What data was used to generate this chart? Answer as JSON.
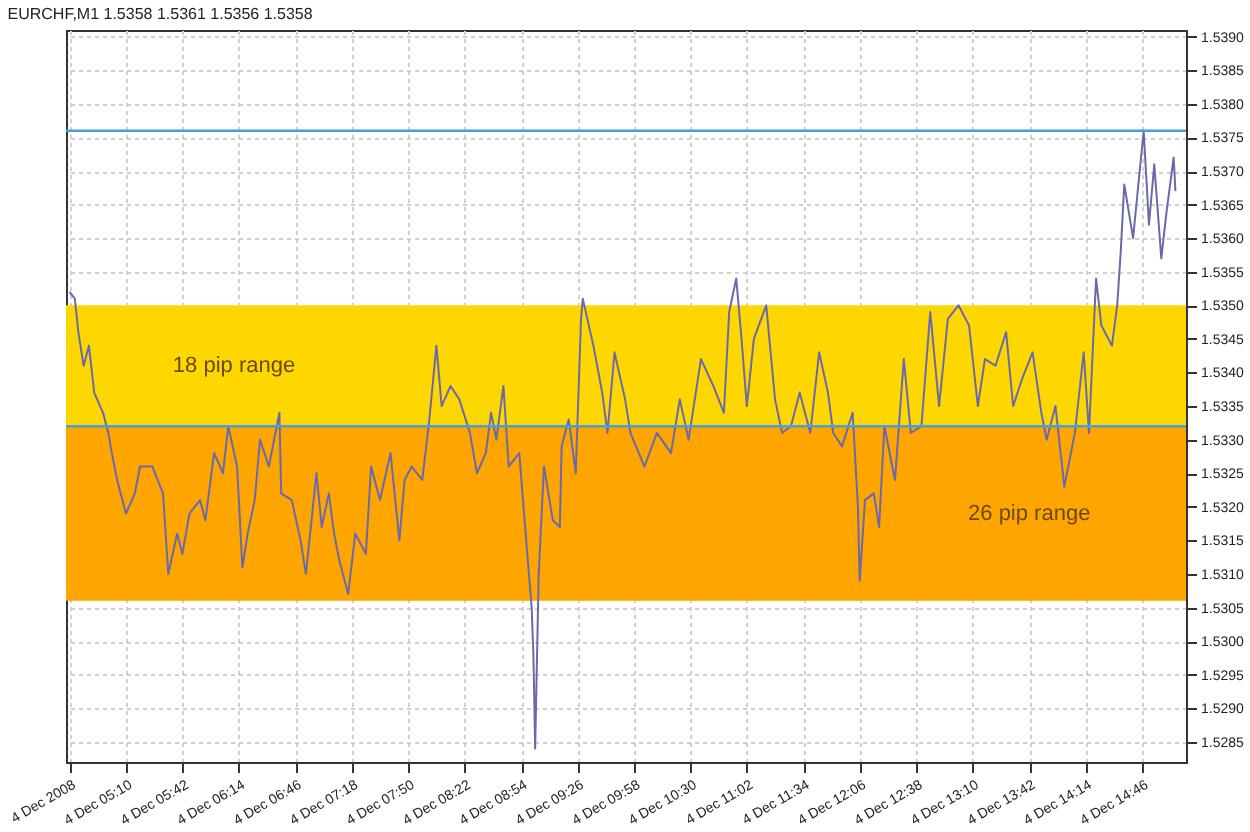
{
  "chart_data": {
    "type": "line",
    "title": "EURCHF,M1 1.5358 1.5361 1.5356 1.5358",
    "x": [
      "2008-12-04T04:38",
      "2008-12-04T04:41",
      "2008-12-04T04:43",
      "2008-12-04T04:46",
      "2008-12-04T04:49",
      "2008-12-04T04:52",
      "2008-12-04T04:57",
      "2008-12-04T05:00",
      "2008-12-04T05:02",
      "2008-12-04T05:05",
      "2008-12-04T05:10",
      "2008-12-04T05:15",
      "2008-12-04T05:18",
      "2008-12-04T05:25",
      "2008-12-04T05:31",
      "2008-12-04T05:34",
      "2008-12-04T05:39",
      "2008-12-04T05:42",
      "2008-12-04T05:46",
      "2008-12-04T05:52",
      "2008-12-04T05:55",
      "2008-12-04T06:00",
      "2008-12-04T06:05",
      "2008-12-04T06:08",
      "2008-12-04T06:13",
      "2008-12-04T06:16",
      "2008-12-04T06:19",
      "2008-12-04T06:23",
      "2008-12-04T06:26",
      "2008-12-04T06:31",
      "2008-12-04T06:37",
      "2008-12-04T06:38",
      "2008-12-04T06:44",
      "2008-12-04T06:49",
      "2008-12-04T06:52",
      "2008-12-04T06:58",
      "2008-12-04T07:01",
      "2008-12-04T07:05",
      "2008-12-04T07:08",
      "2008-12-04T07:11",
      "2008-12-04T07:16",
      "2008-12-04T07:20",
      "2008-12-04T07:26",
      "2008-12-04T07:29",
      "2008-12-04T07:34",
      "2008-12-04T07:40",
      "2008-12-04T07:45",
      "2008-12-04T07:48",
      "2008-12-04T07:52",
      "2008-12-04T07:58",
      "2008-12-04T08:02",
      "2008-12-04T08:06",
      "2008-12-04T08:09",
      "2008-12-04T08:14",
      "2008-12-04T08:19",
      "2008-12-04T08:25",
      "2008-12-04T08:29",
      "2008-12-04T08:34",
      "2008-12-04T08:37",
      "2008-12-04T08:40",
      "2008-12-04T08:44",
      "2008-12-04T08:47",
      "2008-12-04T08:53",
      "2008-12-04T08:56",
      "2008-12-04T09:00",
      "2008-12-04T09:01",
      "2008-12-04T09:02",
      "2008-12-04T09:04",
      "2008-12-04T09:07",
      "2008-12-04T09:12",
      "2008-12-04T09:16",
      "2008-12-04T09:17",
      "2008-12-04T09:21",
      "2008-12-04T09:25",
      "2008-12-04T09:28",
      "2008-12-04T09:29",
      "2008-12-04T09:35",
      "2008-12-04T09:40",
      "2008-12-04T09:43",
      "2008-12-04T09:47",
      "2008-12-04T09:53",
      "2008-12-04T09:56",
      "2008-12-04T10:04",
      "2008-12-04T10:11",
      "2008-12-04T10:19",
      "2008-12-04T10:24",
      "2008-12-04T10:29",
      "2008-12-04T10:36",
      "2008-12-04T10:43",
      "2008-12-04T10:49",
      "2008-12-04T10:52",
      "2008-12-04T10:56",
      "2008-12-04T10:59",
      "2008-12-04T11:02",
      "2008-12-04T11:06",
      "2008-12-04T11:13",
      "2008-12-04T11:18",
      "2008-12-04T11:22",
      "2008-12-04T11:27",
      "2008-12-04T11:32",
      "2008-12-04T11:38",
      "2008-12-04T11:43",
      "2008-12-04T11:48",
      "2008-12-04T11:51",
      "2008-12-04T11:56",
      "2008-12-04T12:02",
      "2008-12-04T12:05",
      "2008-12-04T12:06",
      "2008-12-04T12:09",
      "2008-12-04T12:14",
      "2008-12-04T12:17",
      "2008-12-04T12:20",
      "2008-12-04T12:26",
      "2008-12-04T12:31",
      "2008-12-04T12:35",
      "2008-12-04T12:41",
      "2008-12-04T12:46",
      "2008-12-04T12:51",
      "2008-12-04T12:56",
      "2008-12-04T13:02",
      "2008-12-04T13:08",
      "2008-12-04T13:13",
      "2008-12-04T13:17",
      "2008-12-04T13:23",
      "2008-12-04T13:29",
      "2008-12-04T13:33",
      "2008-12-04T13:38",
      "2008-12-04T13:44",
      "2008-12-04T13:49",
      "2008-12-04T13:52",
      "2008-12-04T13:57",
      "2008-12-04T14:02",
      "2008-12-04T14:08",
      "2008-12-04T14:13",
      "2008-12-04T14:16",
      "2008-12-04T14:20",
      "2008-12-04T14:23",
      "2008-12-04T14:29",
      "2008-12-04T14:32",
      "2008-12-04T14:34",
      "2008-12-04T14:36",
      "2008-12-04T14:41",
      "2008-12-04T14:47",
      "2008-12-04T14:50",
      "2008-12-04T14:53",
      "2008-12-04T14:57",
      "2008-12-04T15:00",
      "2008-12-04T15:04",
      "2008-12-04T15:05"
    ],
    "series": [
      {
        "color": "#6a6aaa",
        "values": [
          1.5352,
          1.5351,
          1.5346,
          1.5341,
          1.5344,
          1.5337,
          1.5334,
          1.5331,
          1.5328,
          1.5324,
          1.5319,
          1.5322,
          1.5326,
          1.5326,
          1.5322,
          1.531,
          1.5316,
          1.5313,
          1.5319,
          1.5321,
          1.5318,
          1.5328,
          1.5325,
          1.5332,
          1.5326,
          1.5311,
          1.5316,
          1.5321,
          1.533,
          1.5326,
          1.5334,
          1.5322,
          1.5321,
          1.5315,
          1.531,
          1.5325,
          1.5317,
          1.5322,
          1.5316,
          1.5312,
          1.5307,
          1.5316,
          1.5313,
          1.5326,
          1.5321,
          1.5328,
          1.5315,
          1.5324,
          1.5326,
          1.5324,
          1.5333,
          1.5344,
          1.5335,
          1.5338,
          1.5336,
          1.5331,
          1.5325,
          1.5328,
          1.5334,
          1.533,
          1.5338,
          1.5326,
          1.5328,
          1.5318,
          1.5305,
          1.5298,
          1.5284,
          1.531,
          1.5326,
          1.5318,
          1.5317,
          1.5329,
          1.5333,
          1.5325,
          1.5348,
          1.5351,
          1.5344,
          1.5337,
          1.5331,
          1.5343,
          1.5336,
          1.5331,
          1.5326,
          1.5331,
          1.5328,
          1.5336,
          1.533,
          1.5342,
          1.5338,
          1.5334,
          1.5349,
          1.5354,
          1.5345,
          1.5335,
          1.5345,
          1.535,
          1.5336,
          1.5331,
          1.5332,
          1.5337,
          1.5331,
          1.5343,
          1.5337,
          1.5331,
          1.5329,
          1.5334,
          1.532,
          1.5309,
          1.5321,
          1.5322,
          1.5317,
          1.5332,
          1.5324,
          1.5342,
          1.5331,
          1.5332,
          1.5349,
          1.5335,
          1.5348,
          1.535,
          1.5347,
          1.5335,
          1.5342,
          1.5341,
          1.5346,
          1.5335,
          1.5339,
          1.5343,
          1.5334,
          1.533,
          1.5335,
          1.5323,
          1.5331,
          1.5343,
          1.5331,
          1.5354,
          1.5347,
          1.5344,
          1.535,
          1.5358,
          1.5368,
          1.536,
          1.5376,
          1.5362,
          1.5371,
          1.5357,
          1.5364,
          1.5372,
          1.5367
        ]
      }
    ],
    "xlim": [
      "2008-12-04T04:36",
      "2008-12-04T15:11"
    ],
    "xticks": [
      {
        "value": "2008-12-04T04:38",
        "label": "4 Dec 2008"
      },
      {
        "value": "2008-12-04T05:10",
        "label": "4 Dec 05:10"
      },
      {
        "value": "2008-12-04T05:42",
        "label": "4 Dec 05:42"
      },
      {
        "value": "2008-12-04T06:14",
        "label": "4 Dec 06:14"
      },
      {
        "value": "2008-12-04T06:46",
        "label": "4 Dec 06:46"
      },
      {
        "value": "2008-12-04T07:18",
        "label": "4 Dec 07:18"
      },
      {
        "value": "2008-12-04T07:50",
        "label": "4 Dec 07:50"
      },
      {
        "value": "2008-12-04T08:22",
        "label": "4 Dec 08:22"
      },
      {
        "value": "2008-12-04T08:54",
        "label": "4 Dec 08:54"
      },
      {
        "value": "2008-12-04T09:26",
        "label": "4 Dec 09:26"
      },
      {
        "value": "2008-12-04T09:58",
        "label": "4 Dec 09:58"
      },
      {
        "value": "2008-12-04T10:30",
        "label": "4 Dec 10:30"
      },
      {
        "value": "2008-12-04T11:02",
        "label": "4 Dec 11:02"
      },
      {
        "value": "2008-12-04T11:34",
        "label": "4 Dec 11:34"
      },
      {
        "value": "2008-12-04T12:06",
        "label": "4 Dec 12:06"
      },
      {
        "value": "2008-12-04T12:38",
        "label": "4 Dec 12:38"
      },
      {
        "value": "2008-12-04T13:10",
        "label": "4 Dec 13:10"
      },
      {
        "value": "2008-12-04T13:42",
        "label": "4 Dec 13:42"
      },
      {
        "value": "2008-12-04T14:14",
        "label": "4 Dec 14:14"
      },
      {
        "value": "2008-12-04T14:46",
        "label": "4 Dec 14:46"
      }
    ],
    "ylim": [
      1.5282,
      1.5391
    ],
    "yticks": [
      1.5285,
      {
        "value": 1.529,
        "label": "1.5290"
      },
      1.5295,
      {
        "value": 1.53,
        "label": "1.5300"
      },
      1.5305,
      {
        "value": 1.531,
        "label": "1.5310"
      },
      1.5315,
      {
        "value": 1.532,
        "label": "1.5320"
      },
      1.5325,
      {
        "value": 1.533,
        "label": "1.5330"
      },
      1.5335,
      {
        "value": 1.534,
        "label": "1.5340"
      },
      1.5345,
      {
        "value": 1.535,
        "label": "1.5350"
      },
      1.5355,
      {
        "value": 1.536,
        "label": "1.5360"
      },
      1.5365,
      {
        "value": 1.537,
        "label": "1.5370"
      },
      1.5375,
      {
        "value": 1.538,
        "label": "1.5380"
      },
      1.5385,
      {
        "value": 1.539,
        "label": "1.5390"
      }
    ],
    "bands": [
      {
        "axis": "y",
        "from": 1.5306,
        "to": 1.5332,
        "label": "26 pip range",
        "color": "#ffa500"
      },
      {
        "axis": "y",
        "from": 1.5332,
        "to": 1.535,
        "label": "18 pip range",
        "color": "#ffd700"
      }
    ],
    "ref_lines": [
      {
        "axis": "y",
        "value": 1.5376,
        "color": "#4aa0d8"
      },
      {
        "axis": "y",
        "value": 1.5332,
        "color": "#4aa0d8"
      }
    ],
    "grid": true,
    "marker": "none",
    "line_style": "solid"
  }
}
